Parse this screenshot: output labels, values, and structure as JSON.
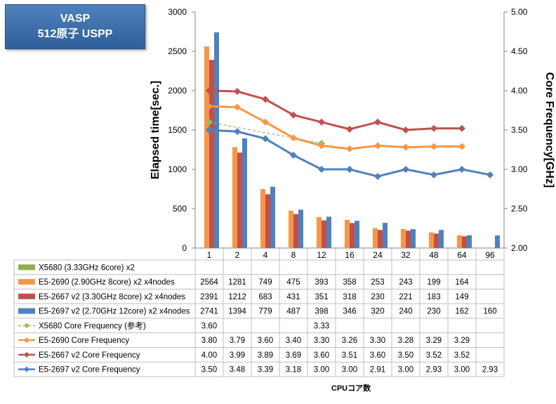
{
  "title_box": {
    "line1": "VASP",
    "line2": "512原子 USPP"
  },
  "chart_data": {
    "type": "bar",
    "categories": [
      "1",
      "2",
      "4",
      "8",
      "12",
      "16",
      "24",
      "32",
      "48",
      "64",
      "96"
    ],
    "xlabel": "CPUコア数",
    "ylabel": "Elapsed time[sec.]",
    "y2label": "Core Frequency[GHz]",
    "ylim": [
      0,
      3000
    ],
    "y_ticks": [
      "0",
      "500",
      "1000",
      "1500",
      "2000",
      "2500",
      "3000"
    ],
    "y2lim": [
      2.0,
      5.0
    ],
    "y2_ticks": [
      "2.00",
      "2.50",
      "3.00",
      "3.50",
      "4.00",
      "4.50",
      "5.00"
    ],
    "grid": false,
    "legend": "data-table",
    "series": [
      {
        "name": "X5680 (3.33GHz 6core) x2",
        "kind": "bar",
        "axis": "y",
        "color": "#8db04c",
        "values": [
          null,
          null,
          null,
          null,
          null,
          null,
          null,
          null,
          null,
          null,
          null
        ]
      },
      {
        "name": "E5-2690 (2.90GHz 8core) x2 x4nodes",
        "kind": "bar",
        "axis": "y",
        "color": "#f79646",
        "values": [
          2564,
          1281,
          749,
          475,
          393,
          358,
          253,
          243,
          199,
          164,
          null
        ]
      },
      {
        "name": "E5-2667 v2 (3.30GHz 8core) x2 x4nodes",
        "kind": "bar",
        "axis": "y",
        "color": "#c0504d",
        "values": [
          2391,
          1212,
          683,
          431,
          351,
          318,
          230,
          221,
          183,
          149,
          null
        ]
      },
      {
        "name": "E5-2697 v2 (2.70GHz 12core) x2 x4nodes",
        "kind": "bar",
        "axis": "y",
        "color": "#4f81bd",
        "values": [
          2741,
          1394,
          779,
          487,
          398,
          346,
          320,
          240,
          230,
          162,
          160
        ]
      },
      {
        "name": "X5680 Core Frequency (参考)",
        "kind": "line",
        "axis": "y2",
        "color": "#9bbb59",
        "dashed": true,
        "values": [
          3.6,
          null,
          null,
          null,
          3.33,
          null,
          null,
          null,
          null,
          null,
          null
        ]
      },
      {
        "name": "E5-2690 Core Frequency",
        "kind": "line",
        "axis": "y2",
        "color": "#f79646",
        "values": [
          3.8,
          3.79,
          3.6,
          3.4,
          3.3,
          3.26,
          3.3,
          3.28,
          3.29,
          3.29,
          null
        ]
      },
      {
        "name": "E5-2667 v2 Core Frequency",
        "kind": "line",
        "axis": "y2",
        "color": "#c0504d",
        "values": [
          4.0,
          3.99,
          3.89,
          3.69,
          3.6,
          3.51,
          3.6,
          3.5,
          3.52,
          3.52,
          null
        ]
      },
      {
        "name": "E5-2697 v2 Core Frequency",
        "kind": "line",
        "axis": "y2",
        "color": "#4f81bd",
        "values": [
          3.5,
          3.48,
          3.39,
          3.18,
          3.0,
          3.0,
          2.91,
          3.0,
          2.93,
          3.0,
          2.93
        ]
      }
    ],
    "table": [
      [
        "",
        "",
        "",
        "",
        "",
        "",
        "",
        "",
        "",
        "",
        ""
      ],
      [
        "2564",
        "1281",
        "749",
        "475",
        "393",
        "358",
        "253",
        "243",
        "199",
        "164",
        ""
      ],
      [
        "2391",
        "1212",
        "683",
        "431",
        "351",
        "318",
        "230",
        "221",
        "183",
        "149",
        ""
      ],
      [
        "2741",
        "1394",
        "779",
        "487",
        "398",
        "346",
        "320",
        "240",
        "230",
        "162",
        "160"
      ],
      [
        "3.60",
        "",
        "",
        "",
        "3.33",
        "",
        "",
        "",
        "",
        "",
        ""
      ],
      [
        "3.80",
        "3.79",
        "3.60",
        "3.40",
        "3.30",
        "3.26",
        "3.30",
        "3.28",
        "3.29",
        "3.29",
        ""
      ],
      [
        "4.00",
        "3.99",
        "3.89",
        "3.69",
        "3.60",
        "3.51",
        "3.60",
        "3.50",
        "3.52",
        "3.52",
        ""
      ],
      [
        "3.50",
        "3.48",
        "3.39",
        "3.18",
        "3.00",
        "3.00",
        "2.91",
        "3.00",
        "2.93",
        "3.00",
        "2.93"
      ]
    ]
  }
}
